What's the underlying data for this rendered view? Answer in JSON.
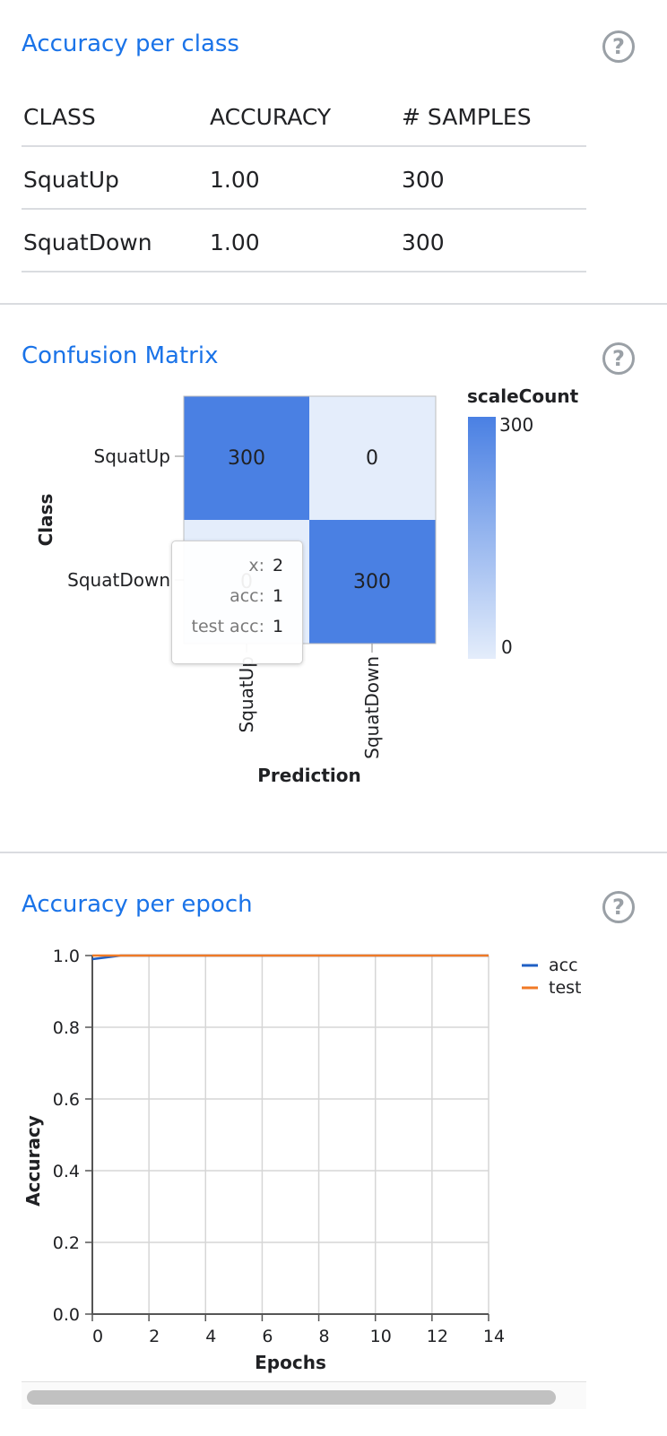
{
  "accuracy_per_class": {
    "title": "Accuracy per class",
    "headers": [
      "CLASS",
      "ACCURACY",
      "# SAMPLES"
    ],
    "rows": [
      {
        "class": "SquatUp",
        "accuracy": "1.00",
        "samples": "300"
      },
      {
        "class": "SquatDown",
        "accuracy": "1.00",
        "samples": "300"
      }
    ]
  },
  "confusion_matrix": {
    "title": "Confusion Matrix",
    "ylabel": "Class",
    "xlabel": "Prediction",
    "legend_title": "scaleCount",
    "legend_max": "300",
    "legend_min": "0",
    "row_labels": [
      "SquatUp",
      "SquatDown"
    ],
    "col_labels": [
      "SquatUp",
      "SquatDown"
    ],
    "cells": [
      [
        "300",
        "0"
      ],
      [
        "0",
        "300"
      ]
    ],
    "colors": {
      "high": "#4a80e3",
      "low": "#e4edfb"
    }
  },
  "tooltip": {
    "rows": [
      {
        "key": "x:",
        "value": "2"
      },
      {
        "key": "acc:",
        "value": "1"
      },
      {
        "key": "test acc:",
        "value": "1"
      }
    ]
  },
  "accuracy_per_epoch": {
    "title": "Accuracy per epoch"
  },
  "chart_data": {
    "type": "line",
    "xlabel": "Epochs",
    "ylabel": "Accuracy",
    "xlim": [
      0,
      14
    ],
    "ylim": [
      0,
      1.0
    ],
    "x_ticks": [
      "0",
      "2",
      "4",
      "6",
      "8",
      "10",
      "12",
      "14"
    ],
    "y_ticks": [
      "0.0",
      "0.2",
      "0.4",
      "0.6",
      "0.8",
      "1.0"
    ],
    "grid": true,
    "legend_position": "top-right",
    "series": [
      {
        "name": "acc",
        "color": "#1f5fc4",
        "x": [
          0,
          1,
          2,
          3,
          4,
          5,
          6,
          7,
          8,
          9,
          10,
          11,
          12,
          13,
          14
        ],
        "values": [
          0.99,
          1.0,
          1.0,
          1.0,
          1.0,
          1.0,
          1.0,
          1.0,
          1.0,
          1.0,
          1.0,
          1.0,
          1.0,
          1.0,
          1.0
        ]
      },
      {
        "name": "test",
        "color": "#f07a26",
        "x": [
          0,
          1,
          2,
          3,
          4,
          5,
          6,
          7,
          8,
          9,
          10,
          11,
          12,
          13,
          14
        ],
        "values": [
          1.0,
          1.0,
          1.0,
          1.0,
          1.0,
          1.0,
          1.0,
          1.0,
          1.0,
          1.0,
          1.0,
          1.0,
          1.0,
          1.0,
          1.0
        ]
      }
    ]
  }
}
